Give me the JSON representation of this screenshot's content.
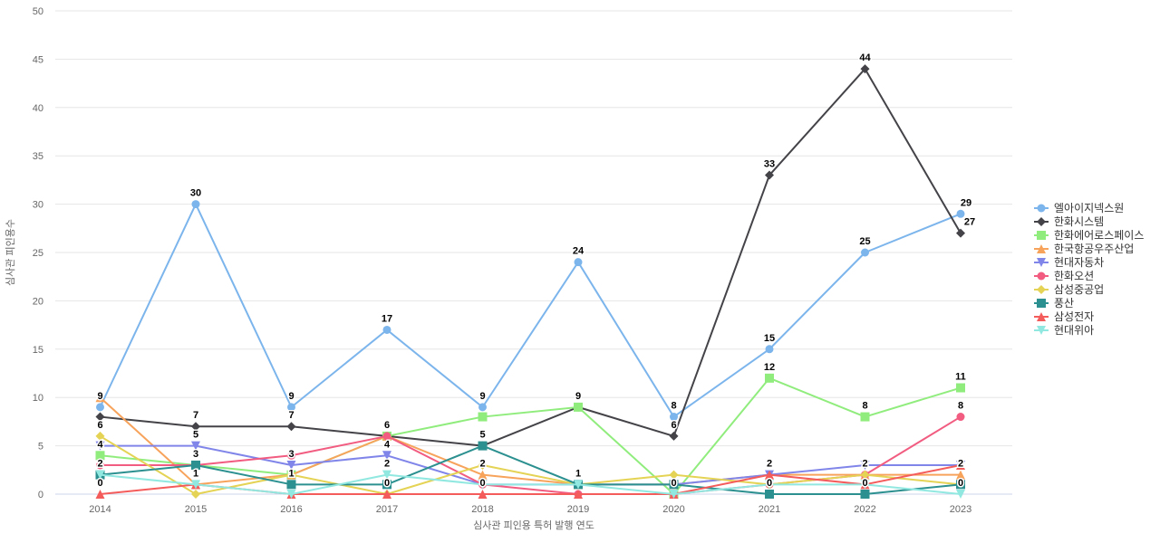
{
  "chart_data": {
    "type": "line",
    "title": "",
    "xlabel": "심사관 피인용 특허 발행 연도",
    "ylabel": "심사관 피인용수",
    "ylim": [
      0,
      50
    ],
    "ytick_step": 5,
    "ytick_labels": [
      "0",
      "5",
      "10",
      "15",
      "20",
      "25",
      "30",
      "35",
      "40",
      "45",
      "50"
    ],
    "grid": "horizontal-only",
    "legend_position": "right",
    "categories": [
      "2014",
      "2015",
      "2016",
      "2017",
      "2018",
      "2019",
      "2020",
      "2021",
      "2022",
      "2023"
    ],
    "series": [
      {
        "name": "엘아이지넥스원",
        "color": "#7cb5ec",
        "marker": "circle",
        "values": [
          9,
          30,
          9,
          17,
          9,
          24,
          8,
          15,
          25,
          29
        ]
      },
      {
        "name": "한화시스템",
        "color": "#434348",
        "marker": "diamond",
        "values": [
          8,
          7,
          7,
          6,
          5,
          9,
          6,
          33,
          44,
          27
        ]
      },
      {
        "name": "한화에어로스페이스",
        "color": "#90ed7d",
        "marker": "square",
        "values": [
          4,
          3,
          2,
          6,
          8,
          9,
          0,
          12,
          8,
          11
        ]
      },
      {
        "name": "한국항공우주산업",
        "color": "#f7a35c",
        "marker": "triangle",
        "values": [
          10,
          1,
          2,
          6,
          2,
          1,
          1,
          2,
          2,
          2
        ]
      },
      {
        "name": "현대자동차",
        "color": "#8085e9",
        "marker": "triangle-down",
        "values": [
          5,
          5,
          3,
          4,
          1,
          1,
          1,
          2,
          3,
          3
        ]
      },
      {
        "name": "한화오션",
        "color": "#f15c80",
        "marker": "circle",
        "values": [
          3,
          3,
          4,
          6,
          1,
          0,
          0,
          1,
          2,
          8
        ]
      },
      {
        "name": "삼성중공업",
        "color": "#e4d354",
        "marker": "diamond",
        "values": [
          6,
          0,
          2,
          0,
          3,
          1,
          2,
          1,
          2,
          1
        ]
      },
      {
        "name": "풍산",
        "color": "#2b908f",
        "marker": "square",
        "values": [
          2,
          3,
          1,
          1,
          5,
          1,
          1,
          0,
          0,
          1
        ]
      },
      {
        "name": "삼성전자",
        "color": "#f45b5b",
        "marker": "triangle",
        "values": [
          0,
          1,
          0,
          0,
          0,
          0,
          0,
          2,
          1,
          3
        ]
      },
      {
        "name": "현대위아",
        "color": "#91e8e1",
        "marker": "triangle-down",
        "values": [
          2,
          1,
          0,
          2,
          1,
          1,
          0,
          1,
          1,
          0
        ]
      }
    ],
    "visible_point_labels": [
      {
        "year": "2014",
        "series": "엘아이지넥스원",
        "text": "9"
      },
      {
        "year": "2014",
        "series": "삼성중공업",
        "text": "6"
      },
      {
        "year": "2014",
        "series": "한화에어로스페이스",
        "text": "4"
      },
      {
        "year": "2014",
        "series": "풍산",
        "text": "2"
      },
      {
        "year": "2014",
        "series": "삼성전자",
        "text": "0"
      },
      {
        "year": "2015",
        "series": "엘아이지넥스원",
        "text": "30"
      },
      {
        "year": "2015",
        "series": "한화시스템",
        "text": "7"
      },
      {
        "year": "2015",
        "series": "현대자동차",
        "text": "5"
      },
      {
        "year": "2015",
        "series": "풍산",
        "text": "3"
      },
      {
        "year": "2015",
        "series": "현대위아",
        "text": "1"
      },
      {
        "year": "2016",
        "series": "엘아이지넥스원",
        "text": "9"
      },
      {
        "year": "2016",
        "series": "한화시스템",
        "text": "7"
      },
      {
        "year": "2016",
        "series": "현대자동차",
        "text": "3"
      },
      {
        "year": "2016",
        "series": "풍산",
        "text": "1"
      },
      {
        "year": "2017",
        "series": "엘아이지넥스원",
        "text": "17"
      },
      {
        "year": "2017",
        "series": "한화오션",
        "text": "6"
      },
      {
        "year": "2017",
        "series": "현대자동차",
        "text": "4"
      },
      {
        "year": "2017",
        "series": "현대위아",
        "text": "2"
      },
      {
        "year": "2017",
        "series": "삼성중공업",
        "text": "0"
      },
      {
        "year": "2018",
        "series": "엘아이지넥스원",
        "text": "9"
      },
      {
        "year": "2018",
        "series": "풍산",
        "text": "5"
      },
      {
        "year": "2018",
        "series": "한국항공우주산업",
        "text": "2"
      },
      {
        "year": "2018",
        "series": "삼성전자",
        "text": "0"
      },
      {
        "year": "2019",
        "series": "엘아이지넥스원",
        "text": "24"
      },
      {
        "year": "2019",
        "series": "한화에어로스페이스",
        "text": "9"
      },
      {
        "year": "2019",
        "series": "현대위아",
        "text": "1"
      },
      {
        "year": "2020",
        "series": "엘아이지넥스원",
        "text": "8"
      },
      {
        "year": "2020",
        "series": "한화시스템",
        "text": "6"
      },
      {
        "year": "2020",
        "series": "현대위아",
        "text": "0"
      },
      {
        "year": "2021",
        "series": "한화시스템",
        "text": "33"
      },
      {
        "year": "2021",
        "series": "엘아이지넥스원",
        "text": "15"
      },
      {
        "year": "2021",
        "series": "한화에어로스페이스",
        "text": "12"
      },
      {
        "year": "2021",
        "series": "삼성전자",
        "text": "2"
      },
      {
        "year": "2021",
        "series": "풍산",
        "text": "0"
      },
      {
        "year": "2022",
        "series": "한화시스템",
        "text": "44"
      },
      {
        "year": "2022",
        "series": "엘아이지넥스원",
        "text": "25"
      },
      {
        "year": "2022",
        "series": "한화에어로스페이스",
        "text": "8"
      },
      {
        "year": "2022",
        "series": "삼성중공업",
        "text": "2"
      },
      {
        "year": "2022",
        "series": "풍산",
        "text": "0"
      },
      {
        "year": "2023",
        "series": "엘아이지넥스원",
        "text": "29",
        "dx": 6
      },
      {
        "year": "2023",
        "series": "한화시스템",
        "text": "27",
        "dx": 10
      },
      {
        "year": "2023",
        "series": "한화에어로스페이스",
        "text": "11"
      },
      {
        "year": "2023",
        "series": "한화오션",
        "text": "8"
      },
      {
        "year": "2023",
        "series": "한국항공우주산업",
        "text": "2"
      },
      {
        "year": "2023",
        "series": "현대위아",
        "text": "0"
      }
    ],
    "colors": {
      "grid": "#e6e6e6",
      "x_axis_line": "#ccd6eb",
      "tick_text": "#666666",
      "axis_title_text": "#666666",
      "legend_text": "#333333",
      "data_label_text": "#000000",
      "background": "#ffffff"
    }
  }
}
